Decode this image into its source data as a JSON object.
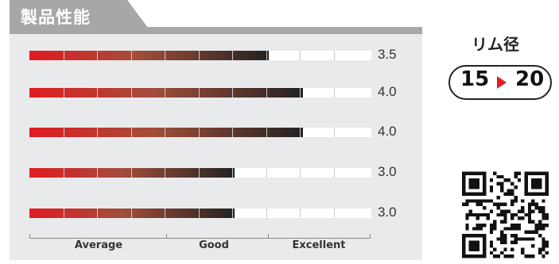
{
  "header": {
    "title": "製品性能"
  },
  "ratings": [
    {
      "value": 3.5,
      "label": "3.5"
    },
    {
      "value": 4.0,
      "label": "4.0"
    },
    {
      "value": 4.0,
      "label": "4.0"
    },
    {
      "value": 3.0,
      "label": "3.0"
    },
    {
      "value": 3.0,
      "label": "3.0"
    }
  ],
  "rating_max": 5,
  "scale": {
    "labels": [
      "Average",
      "Good",
      "Excellent"
    ]
  },
  "rim": {
    "title": "リム径",
    "from": "15",
    "to": "20"
  },
  "colors": {
    "bar_start": "#e11b22",
    "bar_end": "#222222",
    "panel": "#e9eaec",
    "tab": "#a7a7a9",
    "arrow": "#e11b22"
  },
  "icons": {
    "qr": "qr-code-icon",
    "arrow": "play-arrow-icon"
  }
}
